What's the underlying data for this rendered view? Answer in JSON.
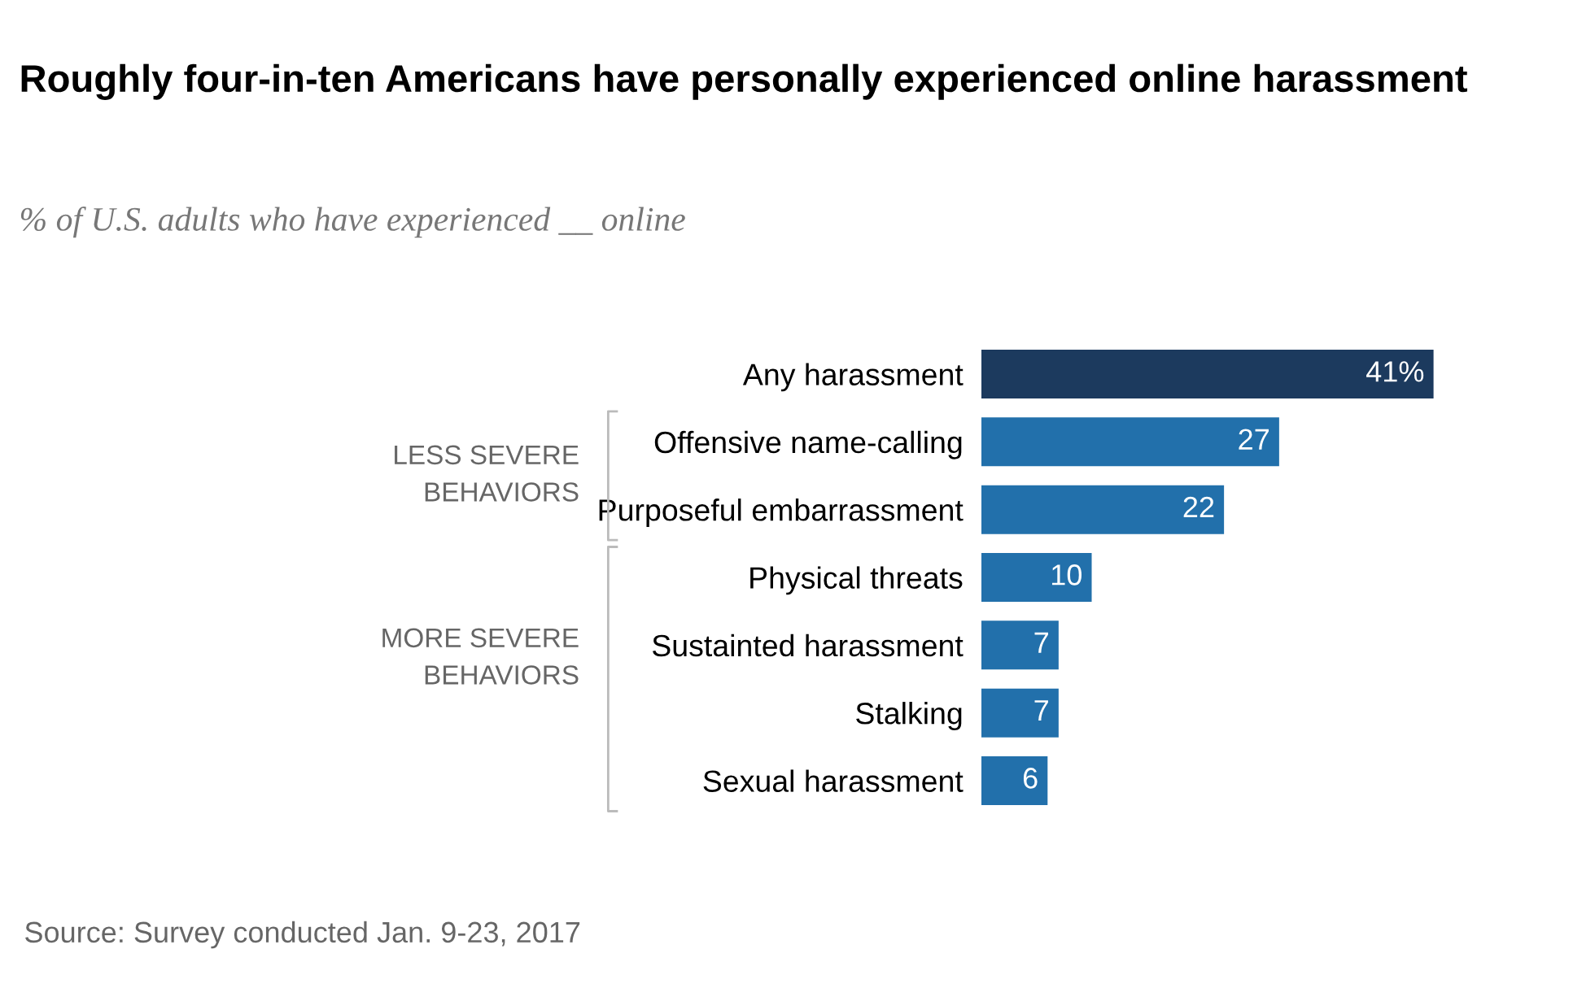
{
  "chart_data": {
    "type": "bar",
    "orientation": "horizontal",
    "title": "Roughly four-in-ten Americans have personally experienced online harassment",
    "subtitle": "% of U.S. adults who have experienced __ online",
    "categories": [
      "Any harassment",
      "Offensive name-calling",
      "Purposeful embarrassment",
      "Physical threats",
      "Sustainted harassment",
      "Stalking",
      "Sexual harassment"
    ],
    "values": [
      41,
      27,
      22,
      10,
      7,
      7,
      6
    ],
    "colors": [
      "#1c3a5e",
      "#2270ab",
      "#2270ab",
      "#2270ab",
      "#2270ab",
      "#2270ab",
      "#2270ab"
    ],
    "value_labels": [
      "41%",
      "27",
      "22",
      "10",
      "7",
      "7",
      "6"
    ],
    "annotations": [
      "LESS SEVERE\nBEHAVIORS",
      "MORE SEVERE\nBEHAVIORS",
      "Source: Survey conducted Jan. 9-23, 2017"
    ],
    "grid": false,
    "legend": false
  }
}
